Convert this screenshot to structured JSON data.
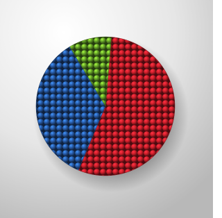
{
  "chart_data": {
    "type": "pie",
    "values": [
      55,
      35,
      10
    ],
    "colors": [
      "#d4202c",
      "#2a5fae",
      "#6aa82a"
    ]
  }
}
